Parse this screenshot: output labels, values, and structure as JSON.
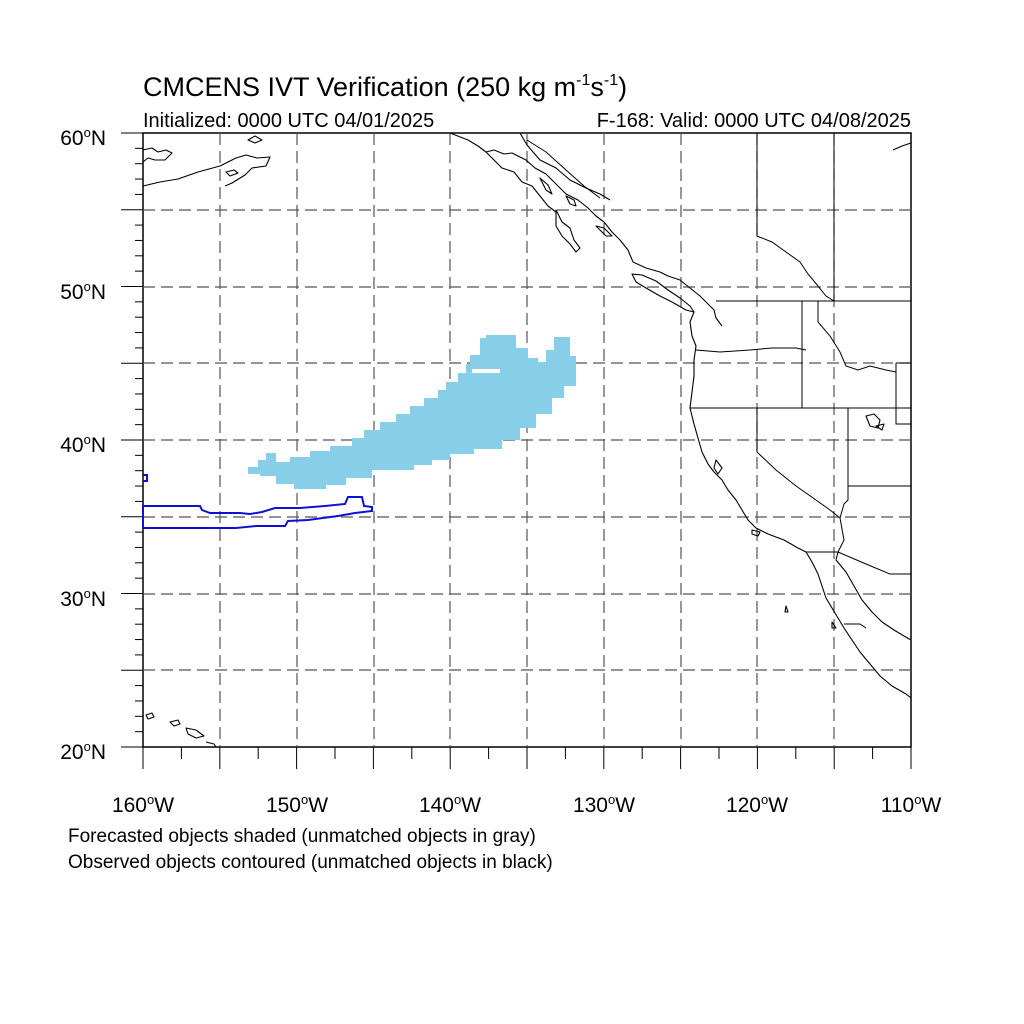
{
  "title": {
    "text": "CMCENS IVT Verification (250 kg m",
    "sup1": "-1",
    "mid": "s",
    "sup2": "-1",
    "end": ")"
  },
  "subtitle_left": "Initialized: 0000 UTC 04/01/2025",
  "subtitle_right": "F-168: Valid: 0000 UTC 04/08/2025",
  "lat_labels": [
    "60",
    "50",
    "40",
    "30",
    "20"
  ],
  "lat_suffix": "N",
  "lon_labels": [
    "160",
    "150",
    "140",
    "130",
    "120",
    "110"
  ],
  "lon_suffix": "W",
  "degree_symbol": "o",
  "footer": [
    "Forecasted objects shaded (unmatched objects in gray)",
    "Observed objects contoured (unmatched objects in black)"
  ],
  "colors": {
    "forecast_fill": "#87CEE8",
    "observed_contour": "#1010D0",
    "coastline": "#000000",
    "grid": "#555555"
  },
  "map_extent": {
    "lon_min": -160,
    "lon_max": -110,
    "lat_min": 20,
    "lat_max": 60
  }
}
